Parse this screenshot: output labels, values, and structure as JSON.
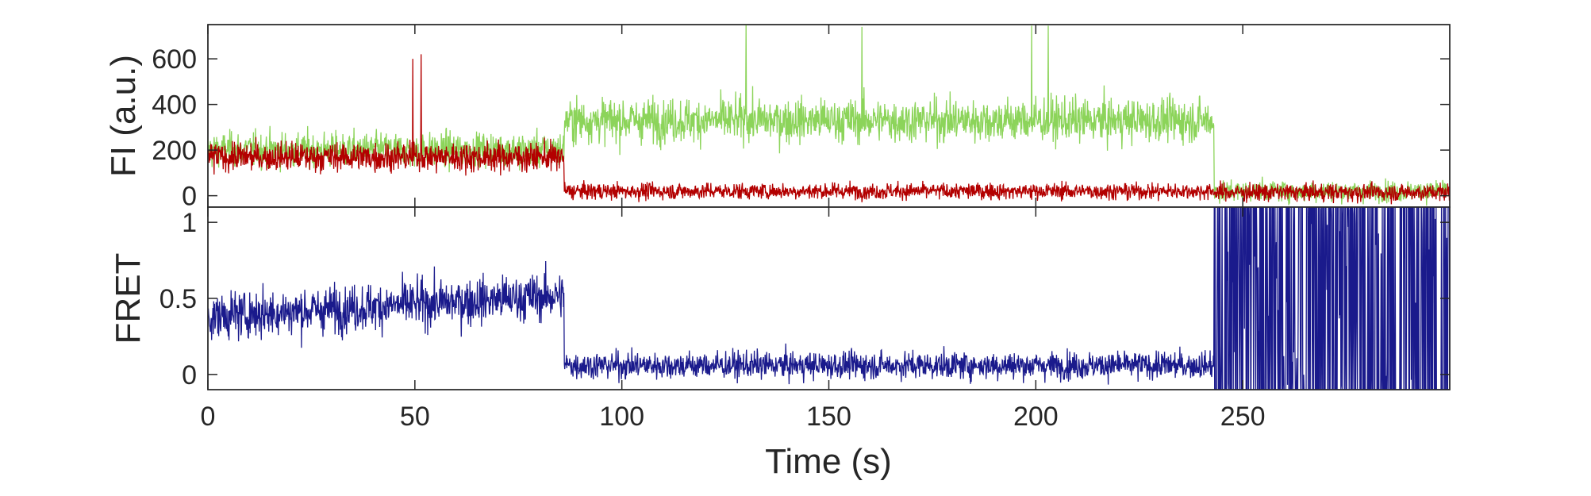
{
  "chart_data": [
    {
      "type": "line",
      "panel": "top",
      "ylabel": "FI (a.u.)",
      "xlim": [
        0,
        300
      ],
      "ylim": [
        -50,
        750
      ],
      "yticks": [
        0,
        200,
        400,
        600
      ],
      "grid": false,
      "segments": [
        {
          "name": "",
          "color": "#8cd45a",
          "x_range": [
            0,
            86
          ],
          "mean": 200,
          "spread": 60,
          "note_trend": "flat"
        },
        {
          "name": "",
          "color": "#8cd45a",
          "x_range": [
            86,
            243
          ],
          "mean": 330,
          "spread": 75
        },
        {
          "name": "",
          "color": "#8cd45a",
          "x_range": [
            243,
            300
          ],
          "mean": 20,
          "spread": 35
        },
        {
          "name": "",
          "color": "#b30000",
          "x_range": [
            0,
            86
          ],
          "mean": 170,
          "spread": 50
        },
        {
          "name": "",
          "color": "#b30000",
          "x_range": [
            86,
            243
          ],
          "mean": 20,
          "spread": 28
        },
        {
          "name": "",
          "color": "#b30000",
          "x_range": [
            243,
            300
          ],
          "mean": 15,
          "spread": 30
        }
      ],
      "spikes": [
        {
          "color": "#b30000",
          "x": 49.5,
          "y": 600
        },
        {
          "color": "#b30000",
          "x": 51.5,
          "y": 620
        },
        {
          "color": "#8cd45a",
          "x": 130,
          "y": 750
        },
        {
          "color": "#8cd45a",
          "x": 158,
          "y": 740
        },
        {
          "color": "#8cd45a",
          "x": 199,
          "y": 745
        },
        {
          "color": "#8cd45a",
          "x": 203,
          "y": 745
        }
      ]
    },
    {
      "type": "line",
      "panel": "bottom",
      "xlabel": "Time (s)",
      "ylabel": "FRET",
      "xlim": [
        0,
        300
      ],
      "ylim": [
        -0.1,
        1.1
      ],
      "xticks": [
        0,
        50,
        100,
        150,
        200,
        250
      ],
      "yticks": [
        0,
        0.5,
        1
      ],
      "ytick_labels": [
        "0",
        "0.5",
        "1"
      ],
      "grid": false,
      "series_color": "#1a1a8c",
      "segments": [
        {
          "x_range": [
            0,
            86
          ],
          "mean_start": 0.38,
          "mean_end": 0.52,
          "spread": 0.12
        },
        {
          "x_range": [
            86,
            243
          ],
          "mean": 0.06,
          "spread": 0.07
        },
        {
          "x_range": [
            243,
            300
          ],
          "mode": "saturated",
          "low": -0.1,
          "high": 1.1
        }
      ]
    }
  ]
}
